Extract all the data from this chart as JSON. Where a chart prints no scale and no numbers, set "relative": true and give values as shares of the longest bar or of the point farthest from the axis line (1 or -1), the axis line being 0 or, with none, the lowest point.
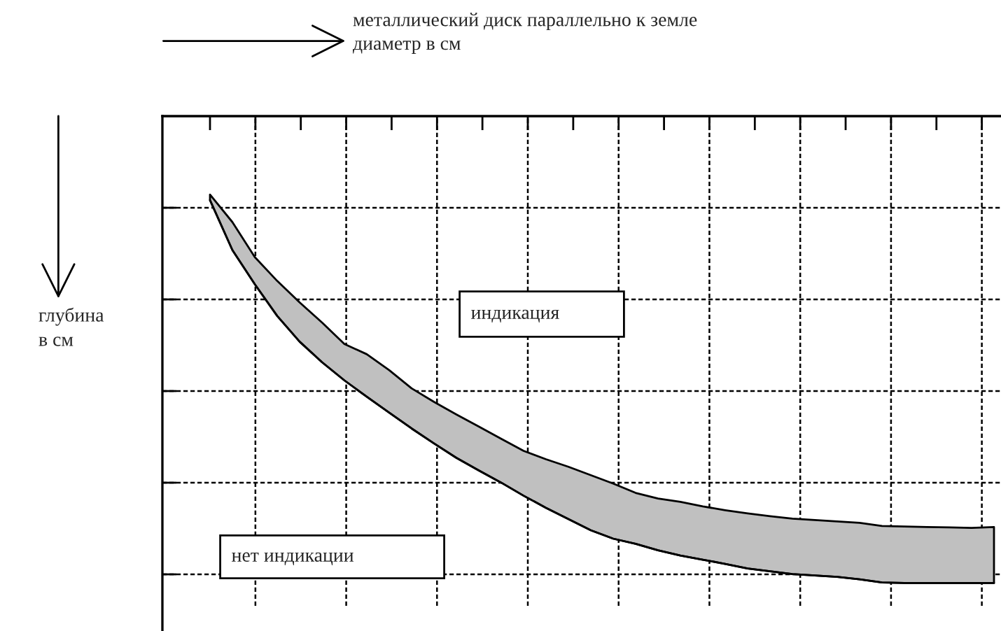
{
  "chart_data": {
    "type": "line",
    "relative": true,
    "xlabel": "металлический диск параллельно к земле\nдиаметр в см",
    "ylabel": "глубина\nв см",
    "annotations": [
      "индикация",
      "нет индикации"
    ],
    "grid": true,
    "categories": [
      null,
      null,
      null,
      null,
      null,
      null,
      null,
      null,
      null,
      null,
      null,
      null,
      null,
      null,
      null,
      null,
      null,
      null,
      null,
      null,
      null,
      null,
      null,
      null,
      null,
      null,
      null,
      null,
      null,
      null,
      null,
      null,
      null,
      null,
      null,
      null
    ],
    "series": [
      {
        "color": "#000000",
        "values": [
          -0.18,
          -0.287,
          -0.36,
          -0.428,
          -0.483,
          -0.527,
          -0.566,
          -0.601,
          -0.635,
          -0.669,
          -0.701,
          -0.732,
          -0.759,
          -0.785,
          -0.813,
          -0.839,
          -0.863,
          -0.887,
          -0.905,
          -0.916,
          -0.93,
          -0.941,
          -0.95,
          -0.959,
          -0.969,
          -0.975,
          -0.981,
          -0.984,
          -0.987,
          -0.992,
          -0.999,
          -1.0,
          -1.0,
          -1.0,
          -1.0,
          -1.0
        ],
        "lower": [
          -0.18,
          -0.287,
          -0.36,
          -0.428,
          -0.483,
          -0.527,
          -0.566,
          -0.601,
          -0.635,
          -0.669,
          -0.701,
          -0.732,
          -0.759,
          -0.785,
          -0.813,
          -0.839,
          -0.863,
          -0.887,
          -0.905,
          -0.916,
          -0.93,
          -0.941,
          -0.95,
          -0.959,
          -0.969,
          -0.975,
          -0.981,
          -0.984,
          -0.987,
          -0.992,
          -0.999,
          -1.0,
          -1.0,
          -1.0,
          -1.0,
          -1.0
        ],
        "upper": [
          -0.168,
          -0.227,
          -0.302,
          -0.353,
          -0.399,
          -0.442,
          -0.488,
          -0.51,
          -0.544,
          -0.583,
          -0.612,
          -0.639,
          -0.665,
          -0.691,
          -0.717,
          -0.735,
          -0.751,
          -0.769,
          -0.787,
          -0.807,
          -0.819,
          -0.826,
          -0.836,
          -0.844,
          -0.851,
          -0.857,
          -0.862,
          -0.865,
          -0.868,
          -0.871,
          -0.878,
          -0.879,
          -0.88,
          -0.881,
          -0.882,
          -0.88
        ]
      }
    ]
  }
}
